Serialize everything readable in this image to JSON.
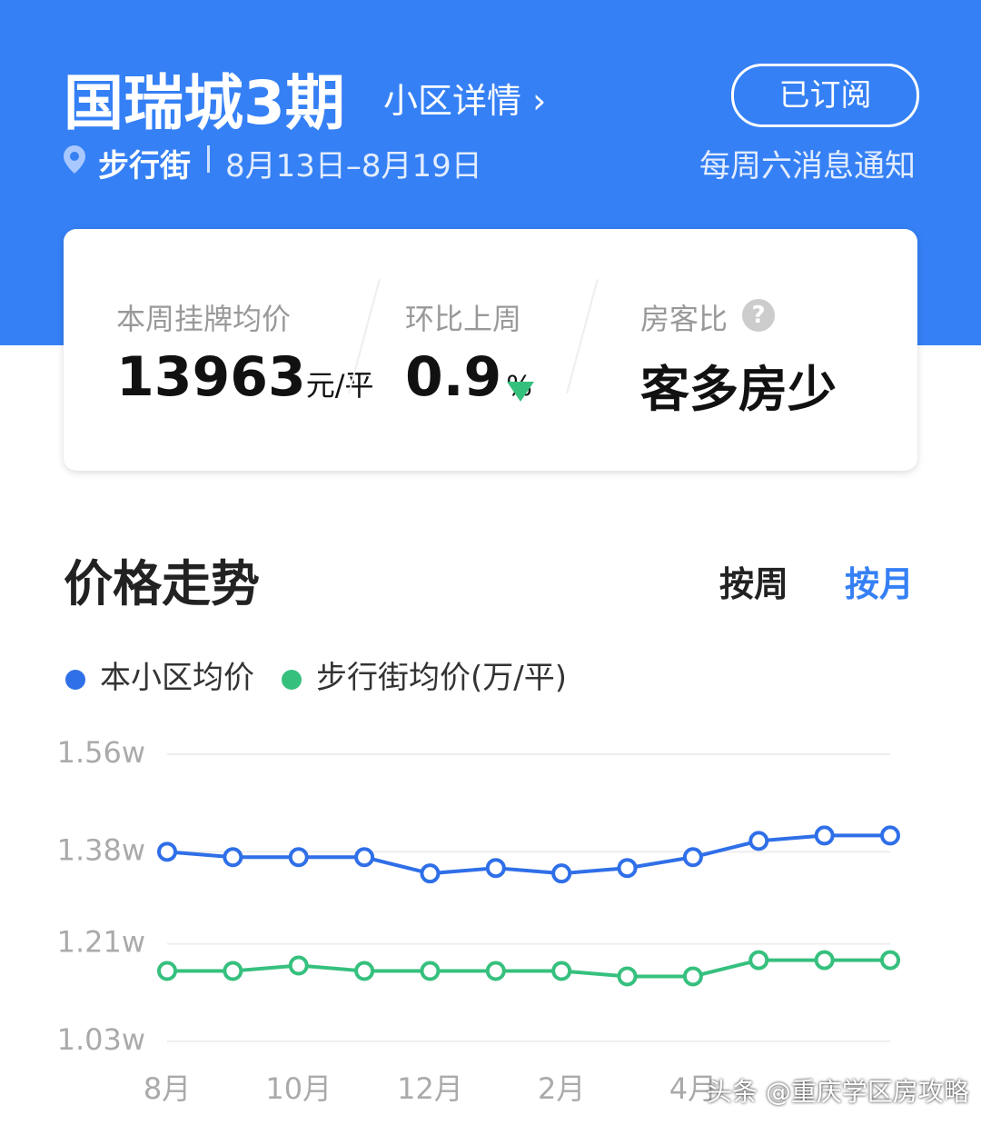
{
  "header": {
    "title": "国瑞城3期",
    "detail_link": "小区详情",
    "subscribe_button": "已订阅",
    "location": "步行街",
    "date_range": "8月13日–8月19日",
    "notice": "每周六消息通知"
  },
  "stats": {
    "avg_price_label": "本周挂牌均价",
    "avg_price": 13963,
    "avg_price_unit": "元/平",
    "change_label": "环比上周",
    "change": 0.9,
    "change_unit": "%",
    "ratio_label": "房客比",
    "ratio_value": "客多房少"
  },
  "section": {
    "title": "价格走势",
    "tab_week": "按周",
    "tab_month": "按月"
  },
  "chart_data": {
    "type": "line",
    "categories": [
      "8月",
      null,
      "10月",
      null,
      "12月",
      null,
      "2月",
      null,
      "4月",
      null,
      null,
      null
    ],
    "series": [
      {
        "name": "本小区均价",
        "color": "#2f6fe8",
        "values": [
          1.38,
          1.37,
          1.37,
          1.37,
          1.34,
          1.35,
          1.34,
          1.35,
          1.37,
          1.4,
          1.41,
          1.41
        ]
      },
      {
        "name": "步行街均价(万/平)",
        "color": "#36c07e",
        "values": [
          1.16,
          1.16,
          1.17,
          1.16,
          1.16,
          1.16,
          1.16,
          1.15,
          1.15,
          1.18,
          1.18,
          1.18
        ]
      }
    ],
    "ylim": [
      1.03,
      1.56
    ],
    "yticks": [
      {
        "value": 1.03,
        "label": "1.03w"
      },
      {
        "value": 1.21,
        "label": "1.21w"
      },
      {
        "value": 1.38,
        "label": "1.38w"
      },
      {
        "value": 1.56,
        "label": "1.56w"
      }
    ],
    "grid": true
  },
  "watermark": "头条 @重庆学区房攻略"
}
